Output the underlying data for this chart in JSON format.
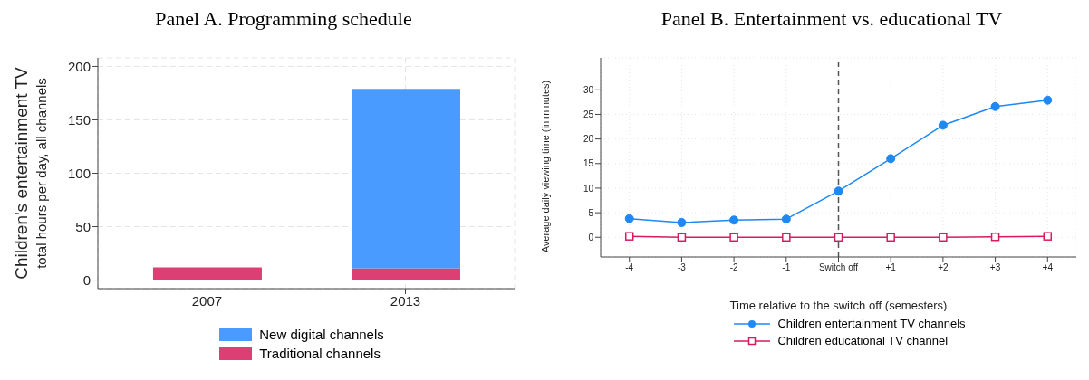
{
  "chart_data": [
    {
      "type": "bar",
      "title": "Panel A. Programming schedule",
      "ylabel": "Children's entertainment TV\ntotal hours per day, all channels",
      "categories": [
        "2007",
        "2013"
      ],
      "stacked": true,
      "series": [
        {
          "name": "Traditional channels",
          "color": "#dc3f74",
          "values": [
            12,
            11
          ]
        },
        {
          "name": "New digital channels",
          "color": "#4a9bff",
          "values": [
            0,
            168
          ]
        }
      ],
      "ylim": [
        -8,
        208
      ],
      "yticks": [
        0,
        50,
        100,
        150,
        200
      ],
      "grid": true,
      "legend": "bottom"
    },
    {
      "type": "line",
      "title": "Panel B. Entertainment vs. educational TV",
      "xlabel": "Time relative to the switch off (semesters)",
      "ylabel": "Average daily viewing time (in minutes)",
      "categories": [
        "-4",
        "-3",
        "-2",
        "-1",
        "Switch off",
        "+1",
        "+2",
        "+3",
        "+4"
      ],
      "series": [
        {
          "name": "Children entertainment TV channels",
          "color": "#1e88f5",
          "marker": "circle",
          "values": [
            3.8,
            3.0,
            3.5,
            3.7,
            9.4,
            16.0,
            22.8,
            26.6,
            27.9
          ]
        },
        {
          "name": "Children educational TV channel",
          "color": "#d81b60",
          "marker": "square",
          "values": [
            0.2,
            0,
            0,
            0,
            0,
            0,
            0,
            0.1,
            0.2
          ]
        }
      ],
      "ylim": [
        -4,
        36.5
      ],
      "yticks": [
        0,
        5,
        10,
        15,
        20,
        25,
        30
      ],
      "grid": true,
      "legend": "bottom",
      "ref_lines": [
        {
          "axis": "x",
          "value": "Switch off",
          "color": "#555555",
          "line_style": "dashed"
        }
      ]
    }
  ]
}
